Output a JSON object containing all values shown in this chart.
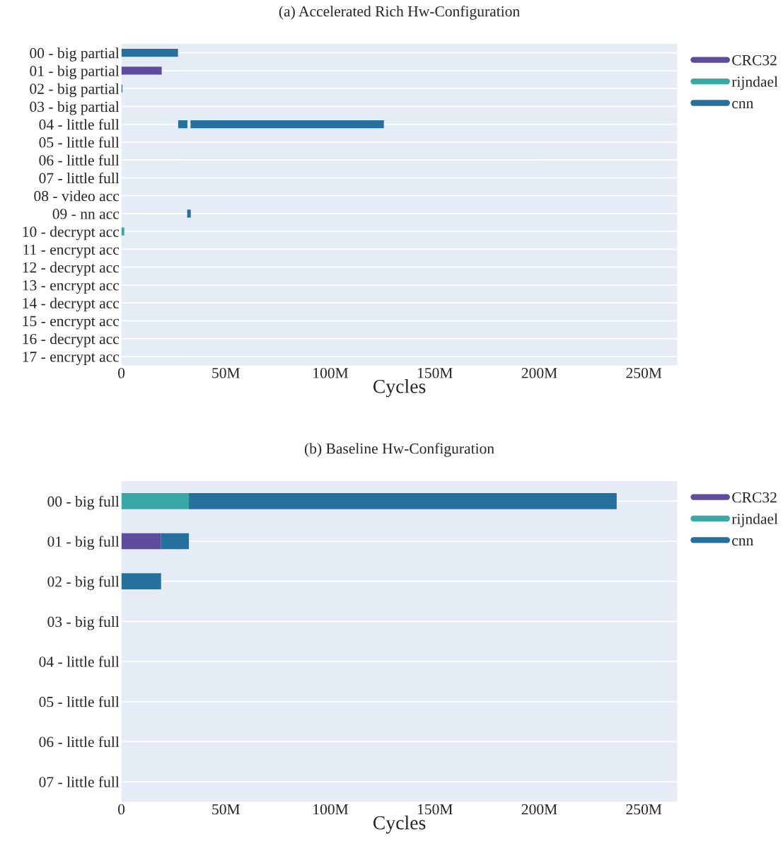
{
  "chart_data": [
    {
      "type": "bar",
      "orientation": "horizontal",
      "title": "(a) Accelerated Rich Hw-Configuration",
      "xlabel": "Cycles",
      "categories": [
        "00 - big partial",
        "01 - big partial",
        "02 - big partial",
        "03 - big partial",
        "04 - little full",
        "05 - little full",
        "06 - little full",
        "07 - little full",
        "08 - video acc",
        "09 - nn acc",
        "10 - decrypt acc",
        "11 - encrypt acc",
        "12 - decrypt acc",
        "13 - encrypt acc",
        "14 - decrypt acc",
        "15 - encrypt acc",
        "16 - decrypt acc",
        "17 - encrypt acc"
      ],
      "series": [
        {
          "name": "CRC32",
          "color": "#5e4c9c",
          "base": [
            null,
            0,
            null,
            null,
            null,
            null,
            null,
            null,
            null,
            null,
            null,
            null,
            null,
            null,
            null,
            null,
            null,
            null
          ],
          "values": [
            null,
            19.3,
            null,
            null,
            null,
            null,
            null,
            null,
            null,
            null,
            null,
            null,
            null,
            null,
            null,
            null,
            null,
            null
          ]
        },
        {
          "name": "rijndael",
          "color": "#3aa8a5",
          "base": [
            null,
            null,
            null,
            null,
            null,
            null,
            null,
            null,
            null,
            null,
            0,
            null,
            null,
            null,
            null,
            null,
            null,
            null
          ],
          "values": [
            null,
            null,
            null,
            null,
            null,
            null,
            null,
            null,
            null,
            null,
            1.4,
            null,
            null,
            null,
            null,
            null,
            null,
            null
          ]
        },
        {
          "name": "cnn",
          "color": "#26709e",
          "base": [
            0,
            null,
            0,
            null,
            27.2,
            null,
            null,
            null,
            null,
            31.5,
            null,
            null,
            null,
            null,
            null,
            null,
            null,
            null
          ],
          "values": [
            27.1,
            null,
            0.5,
            null,
            4.4,
            null,
            null,
            null,
            null,
            1.7,
            null,
            null,
            null,
            null,
            null,
            null,
            null,
            null
          ]
        },
        {
          "color": "#26709e",
          "base": [
            null,
            null,
            null,
            null,
            33.1,
            null,
            null,
            null,
            null,
            null,
            null,
            null,
            null,
            null,
            null,
            null,
            null,
            null
          ],
          "values": [
            null,
            null,
            null,
            null,
            92.5,
            null,
            null,
            null,
            null,
            null,
            null,
            null,
            null,
            null,
            null,
            null,
            null,
            null
          ]
        }
      ],
      "xlim": [
        0,
        266
      ],
      "xticks": [
        0,
        {
          "value": 50,
          "label": "50M"
        },
        {
          "value": 100,
          "label": "100M"
        },
        {
          "value": 150,
          "label": "150M"
        },
        {
          "value": 200,
          "label": "200M"
        },
        {
          "value": 250,
          "label": "250M"
        }
      ],
      "grid": "y",
      "legend": "right"
    },
    {
      "type": "bar",
      "orientation": "horizontal",
      "stacked": true,
      "title": "(b) Baseline Hw-Configuration",
      "xlabel": "Cycles",
      "categories": [
        "00 - big full",
        "01 - big full",
        "02 - big full",
        "03 - big full",
        "04 - little full",
        "05 - little full",
        "06 - little full",
        "07 - little full"
      ],
      "series": [
        {
          "name": "CRC32",
          "color": "#5e4c9c",
          "values": [
            null,
            19,
            null,
            null,
            null,
            null,
            null,
            null
          ]
        },
        {
          "name": "rijndael",
          "color": "#3aa8a5",
          "values": [
            32.3,
            null,
            null,
            null,
            null,
            null,
            null,
            null
          ]
        },
        {
          "name": "cnn",
          "color": "#26709e",
          "values": [
            204.7,
            13.3,
            19,
            null,
            null,
            null,
            null,
            null
          ]
        }
      ],
      "xlim": [
        0,
        266
      ],
      "xticks": [
        0,
        {
          "value": 50,
          "label": "50M"
        },
        {
          "value": 100,
          "label": "100M"
        },
        {
          "value": 150,
          "label": "150M"
        },
        {
          "value": 200,
          "label": "200M"
        },
        {
          "value": 250,
          "label": "250M"
        }
      ],
      "grid": "y",
      "legend": "right"
    }
  ]
}
